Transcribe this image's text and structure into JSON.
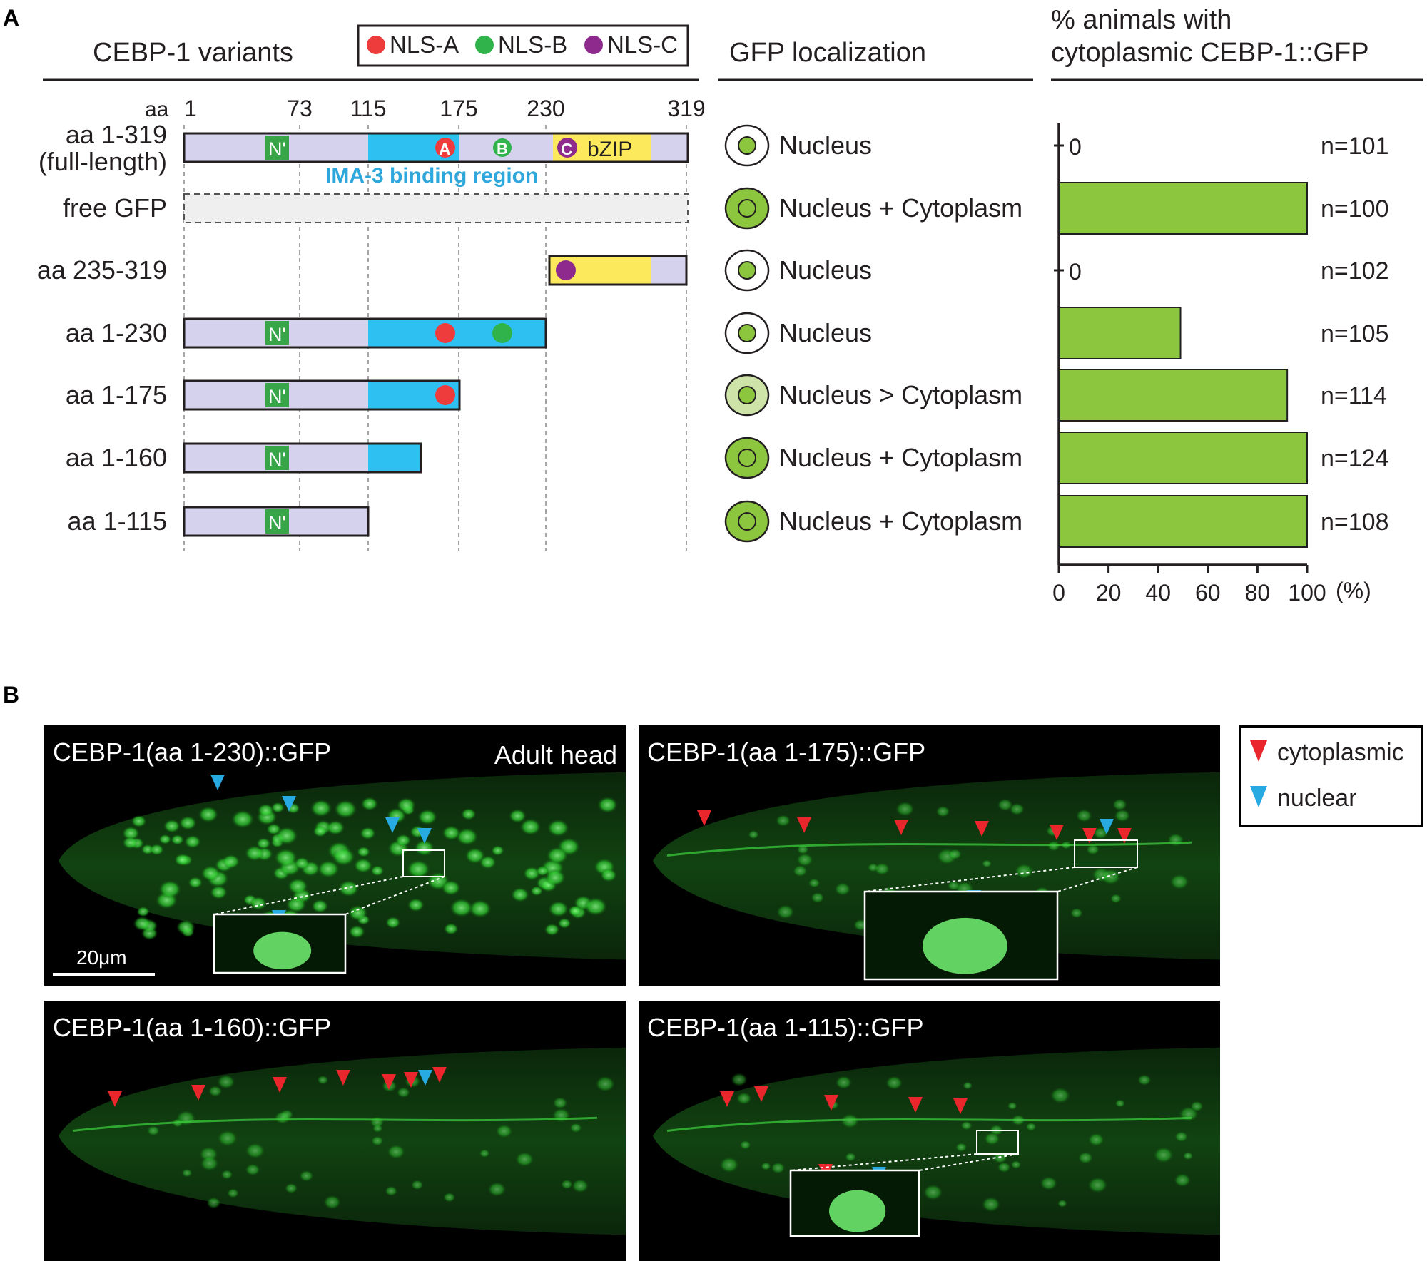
{
  "panel_labels": {
    "a": "A",
    "b": "B"
  },
  "panel_a": {
    "variants_header": "CEBP-1 variants",
    "legend": [
      {
        "label": "NLS-A",
        "color": "#ee3b3b"
      },
      {
        "label": "NLS-B",
        "color": "#2fb34a"
      },
      {
        "label": "NLS-C",
        "color": "#8e2a8e"
      }
    ],
    "aa_prefix": "aa",
    "aa_ticks": [
      "1",
      "73",
      "115",
      "175",
      "230",
      "319"
    ],
    "domain_labels": {
      "n_term": "N'",
      "bzip": "bZIP",
      "ima3": "IMA-3 binding region",
      "nls_a": "A",
      "nls_b": "B",
      "nls_c": "C"
    },
    "colors": {
      "background": "#d4d2ec",
      "ima3": "#2ec0f0",
      "bzip": "#fcea5c",
      "nterm": "#37a548",
      "gfp_fill": "#8cc63f",
      "light_fill": "#cde3a8"
    },
    "variants": [
      {
        "label_line1": "aa 1-319",
        "label_line2": "(full-length)",
        "localization": "Nucleus",
        "percent": 0,
        "percent_label": "0",
        "n": "n=101"
      },
      {
        "label_line1": "free GFP",
        "label_line2": "",
        "localization": "Nucleus + Cytoplasm",
        "percent": 100,
        "percent_label": "",
        "n": "n=100"
      },
      {
        "label_line1": "aa 235-319",
        "label_line2": "",
        "localization": "Nucleus",
        "percent": 0,
        "percent_label": "0",
        "n": "n=102"
      },
      {
        "label_line1": "aa 1-230",
        "label_line2": "",
        "localization": "Nucleus",
        "percent": 49,
        "percent_label": "",
        "n": "n=105"
      },
      {
        "label_line1": "aa 1-175",
        "label_line2": "",
        "localization": "Nucleus > Cytoplasm",
        "percent": 92,
        "percent_label": "",
        "n": "n=114"
      },
      {
        "label_line1": "aa 1-160",
        "label_line2": "",
        "localization": "Nucleus + Cytoplasm",
        "percent": 100,
        "percent_label": "",
        "n": "n=124"
      },
      {
        "label_line1": "aa 1-115",
        "label_line2": "",
        "localization": "Nucleus + Cytoplasm",
        "percent": 100,
        "percent_label": "",
        "n": "n=108"
      }
    ],
    "localization_header": "GFP localization",
    "chart_header_line1": "% animals with",
    "chart_header_line2": "cytoplasmic CEBP-1::GFP"
  },
  "chart_data": {
    "type": "bar",
    "orientation": "horizontal",
    "title": "% animals with cytoplasmic CEBP-1::GFP",
    "categories": [
      "aa 1-319 (full-length)",
      "free GFP",
      "aa 235-319",
      "aa 1-230",
      "aa 1-175",
      "aa 1-160",
      "aa 1-115"
    ],
    "values": [
      0,
      100,
      0,
      49,
      92,
      100,
      100
    ],
    "n_labels": [
      "n=101",
      "n=100",
      "n=102",
      "n=105",
      "n=114",
      "n=124",
      "n=108"
    ],
    "xlim": [
      0,
      100
    ],
    "xticks": [
      "0",
      "20",
      "40",
      "60",
      "80",
      "100"
    ],
    "xunit": "(%)",
    "bar_color": "#8cc63f"
  },
  "panel_b": {
    "micrographs": [
      {
        "title": "CEBP-1(aa 1-230)::GFP",
        "extra_label": "Adult head",
        "scale_bar": "20μm"
      },
      {
        "title": "CEBP-1(aa 1-175)::GFP",
        "extra_label": "",
        "scale_bar": ""
      },
      {
        "title": "CEBP-1(aa 1-160)::GFP",
        "extra_label": "",
        "scale_bar": ""
      },
      {
        "title": "CEBP-1(aa 1-115)::GFP",
        "extra_label": "",
        "scale_bar": ""
      }
    ],
    "arrow_legend": [
      {
        "label": "cytoplasmic",
        "color": "#e8262b"
      },
      {
        "label": "nuclear",
        "color": "#27a9e1"
      }
    ]
  }
}
